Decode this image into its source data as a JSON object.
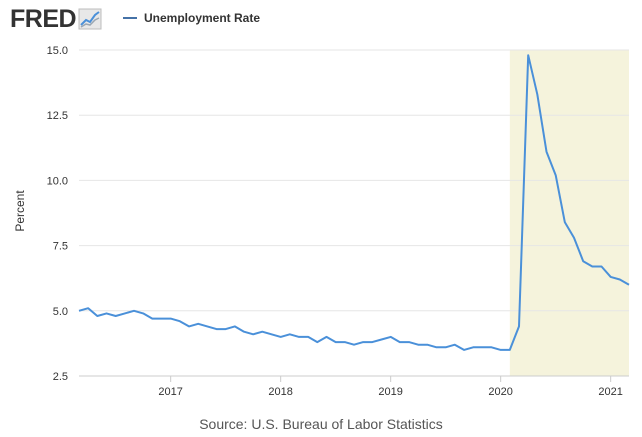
{
  "header": {
    "logo_text": "FRED",
    "logo_icon": "fred-chart-icon",
    "legend_label": "Unemployment Rate"
  },
  "colors": {
    "series": "#4a90d9",
    "recession_shade": "#f5f3dc",
    "grid": "#e6e6e6",
    "text": "#333333"
  },
  "source": "Source: U.S. Bureau of Labor Statistics",
  "chart_data": {
    "type": "line",
    "title": "",
    "xlabel": "",
    "ylabel": "Percent",
    "ylim": [
      2.5,
      15.0
    ],
    "xlim": [
      "2016-03",
      "2021-03"
    ],
    "yticks": [
      "2.5",
      "5.0",
      "7.5",
      "10.0",
      "12.5",
      "15.0"
    ],
    "xticks": [
      "2017",
      "2018",
      "2019",
      "2020",
      "2021"
    ],
    "grid": true,
    "legend_position": "top",
    "shaded_regions": [
      {
        "start": "2020-02",
        "end": "2021-03",
        "label": ""
      }
    ],
    "series": [
      {
        "name": "Unemployment Rate",
        "x": [
          "2016-03",
          "2016-04",
          "2016-05",
          "2016-06",
          "2016-07",
          "2016-08",
          "2016-09",
          "2016-10",
          "2016-11",
          "2016-12",
          "2017-01",
          "2017-02",
          "2017-03",
          "2017-04",
          "2017-05",
          "2017-06",
          "2017-07",
          "2017-08",
          "2017-09",
          "2017-10",
          "2017-11",
          "2017-12",
          "2018-01",
          "2018-02",
          "2018-03",
          "2018-04",
          "2018-05",
          "2018-06",
          "2018-07",
          "2018-08",
          "2018-09",
          "2018-10",
          "2018-11",
          "2018-12",
          "2019-01",
          "2019-02",
          "2019-03",
          "2019-04",
          "2019-05",
          "2019-06",
          "2019-07",
          "2019-08",
          "2019-09",
          "2019-10",
          "2019-11",
          "2019-12",
          "2020-01",
          "2020-02",
          "2020-03",
          "2020-04",
          "2020-05",
          "2020-06",
          "2020-07",
          "2020-08",
          "2020-09",
          "2020-10",
          "2020-11",
          "2020-12",
          "2021-01",
          "2021-02",
          "2021-03"
        ],
        "values": [
          5.0,
          5.1,
          4.8,
          4.9,
          4.8,
          4.9,
          5.0,
          4.9,
          4.7,
          4.7,
          4.7,
          4.6,
          4.4,
          4.5,
          4.4,
          4.3,
          4.3,
          4.4,
          4.2,
          4.1,
          4.2,
          4.1,
          4.0,
          4.1,
          4.0,
          4.0,
          3.8,
          4.0,
          3.8,
          3.8,
          3.7,
          3.8,
          3.8,
          3.9,
          4.0,
          3.8,
          3.8,
          3.7,
          3.7,
          3.6,
          3.6,
          3.7,
          3.5,
          3.6,
          3.6,
          3.6,
          3.5,
          3.5,
          4.4,
          14.8,
          13.3,
          11.1,
          10.2,
          8.4,
          7.8,
          6.9,
          6.7,
          6.7,
          6.3,
          6.2,
          6.0
        ]
      }
    ]
  }
}
